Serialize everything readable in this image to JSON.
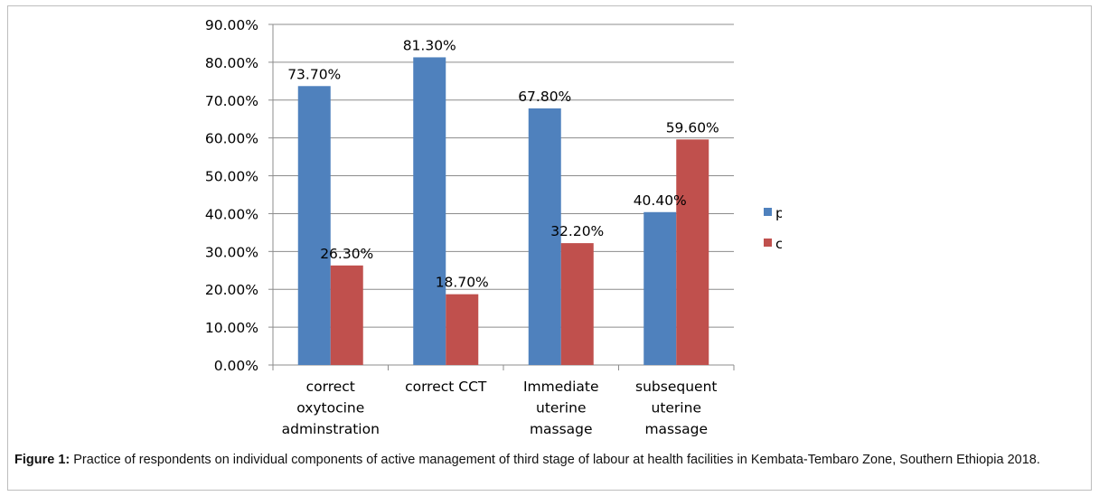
{
  "chart_data": {
    "type": "bar",
    "categories": [
      [
        "correct",
        "oxytocine",
        "adminstration"
      ],
      [
        "correct CCT"
      ],
      [
        "Immediate",
        "uterine",
        "massage"
      ],
      [
        "subsequent",
        "uterine",
        "massage"
      ]
    ],
    "series": [
      {
        "values": [
          73.7,
          81.3,
          67.8,
          40.4
        ],
        "labels": [
          "73.70%",
          "81.30%",
          "67.80%",
          "40.40%"
        ],
        "color": "#4F81BD",
        "legend_label": "p"
      },
      {
        "values": [
          26.3,
          18.7,
          32.2,
          59.6
        ],
        "labels": [
          "26.30%",
          "18.70%",
          "32.20%",
          "59.60%"
        ],
        "color": "#C0504D",
        "legend_label": "c"
      }
    ],
    "yticks": [
      "0.00%",
      "10.00%",
      "20.00%",
      "30.00%",
      "40.00%",
      "50.00%",
      "60.00%",
      "70.00%",
      "80.00%",
      "90.00%"
    ],
    "ylim": [
      0,
      90
    ],
    "grid": true,
    "legend_position": "right"
  },
  "caption": {
    "label": "Figure 1:",
    "text": " Practice of respondents on individual components of active management of third stage of labour at health facilities in Kembata-Tembaro Zone, Southern Ethiopia 2018."
  }
}
